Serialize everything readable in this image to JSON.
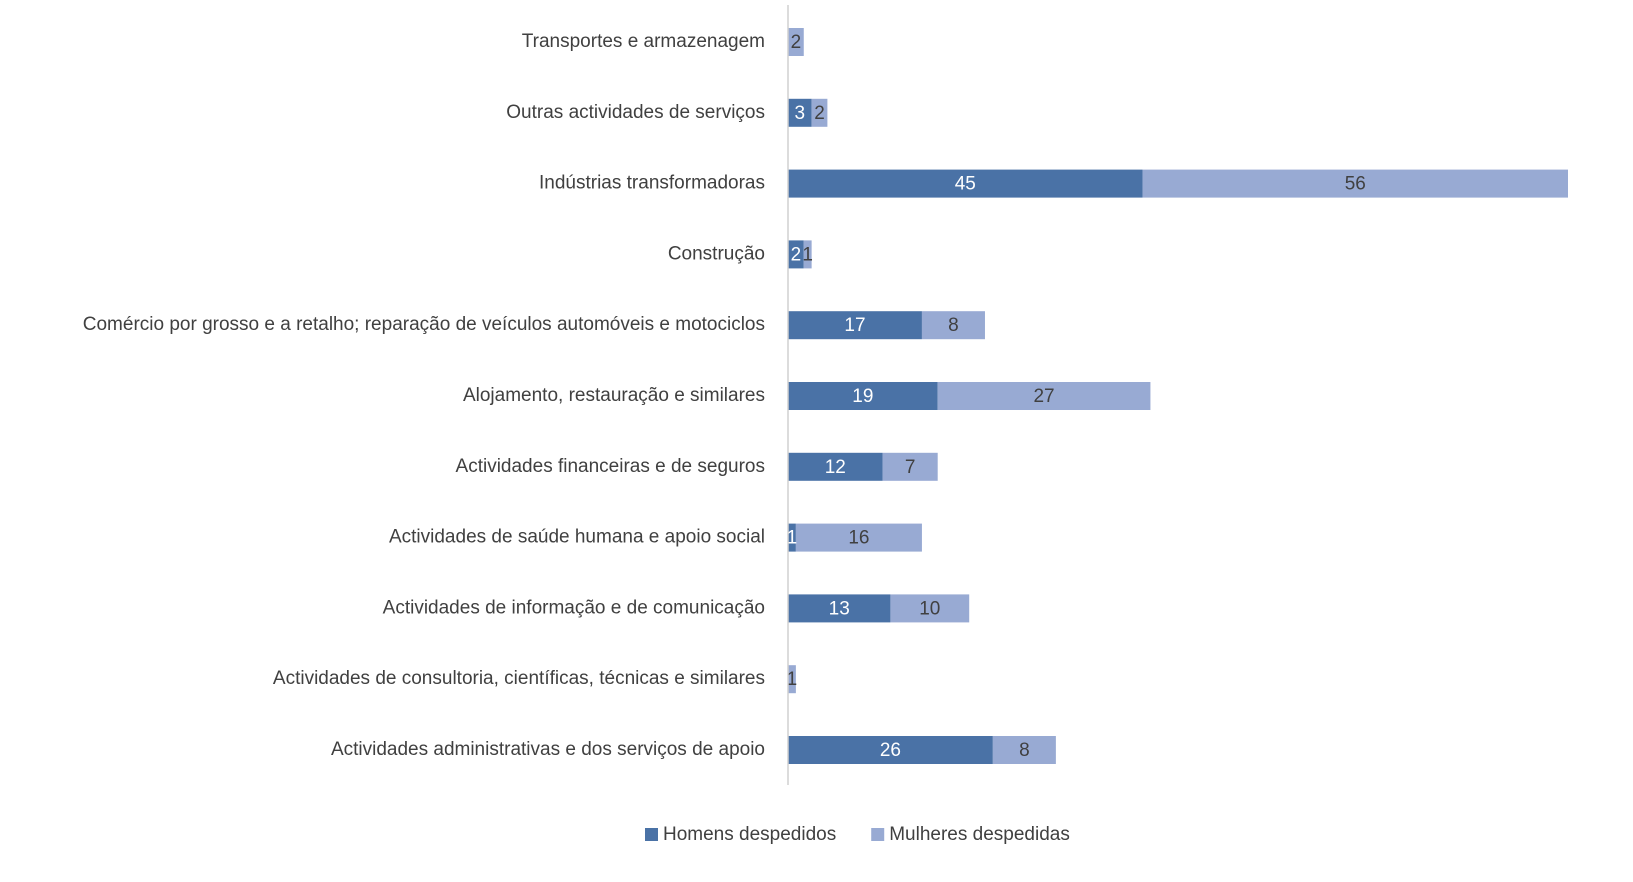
{
  "chart_data": {
    "type": "bar_stacked_horizontal",
    "categories": [
      "Transportes e armazenagem",
      "Outras actividades de serviços",
      "Indústrias transformadoras",
      "Construção",
      "Comércio por grosso e a retalho; reparação de veículos automóveis e motociclos",
      "Alojamento, restauração e similares",
      "Actividades financeiras e de seguros",
      "Actividades de saúde humana e apoio social",
      "Actividades de informação e de comunicação",
      "Actividades de consultoria, científicas, técnicas e similares",
      "Actividades administrativas e dos serviços de apoio"
    ],
    "series": [
      {
        "name": "Homens despedidos",
        "color": "#4a72a6",
        "label_color": "#ffffff",
        "values": [
          null,
          3,
          45,
          2,
          17,
          19,
          12,
          1,
          13,
          null,
          26
        ]
      },
      {
        "name": "Mulheres despedidas",
        "color": "#98aad3",
        "label_color": "#404040",
        "values": [
          2,
          2,
          56,
          1,
          8,
          27,
          7,
          16,
          10,
          1,
          8
        ]
      }
    ],
    "xlim": [
      0,
      99
    ],
    "legend": "bottom"
  }
}
